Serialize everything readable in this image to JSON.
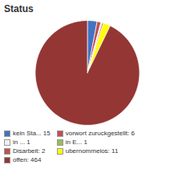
{
  "chart_data": {
    "type": "pie",
    "title": "Status",
    "categories": [
      "kein Sta... 15",
      "vorwort zuruckgestellt: 6",
      "in ... 1",
      "in E... 1",
      "Disarbeit: 2",
      "ubernommelos: 11",
      "offen: 464"
    ],
    "values": [
      15,
      6,
      1,
      1,
      2,
      11,
      464
    ],
    "colors": [
      "#4472c4",
      "#c0504d",
      "#f0f0f0",
      "#9bbb59",
      "#c0504d",
      "#ffff00",
      "#943634"
    ],
    "legend": "bottom"
  }
}
